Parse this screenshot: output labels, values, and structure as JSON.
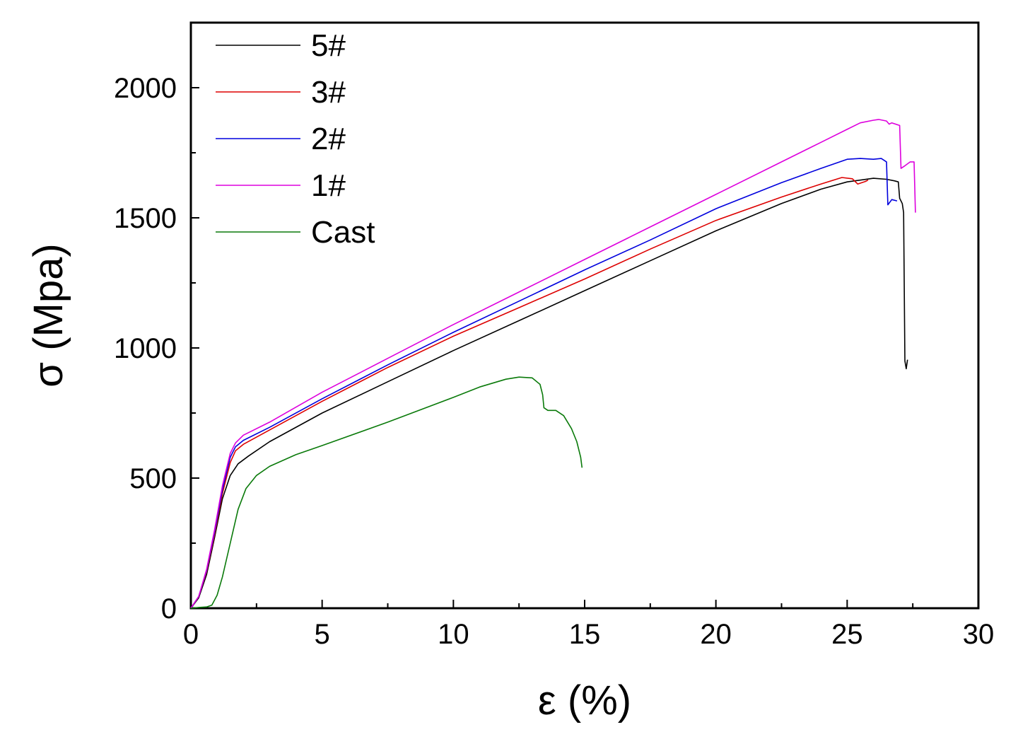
{
  "chart_data": {
    "type": "line",
    "title": "",
    "xlabel": "ε (%)",
    "ylabel": "σ (Mpa)",
    "xlim": [
      0,
      30
    ],
    "ylim": [
      0,
      2250
    ],
    "x_ticks": [
      0,
      5,
      10,
      15,
      20,
      25,
      30
    ],
    "y_ticks": [
      0,
      500,
      1000,
      1500,
      2000
    ],
    "x_minor_step": 2.5,
    "y_minor_step": 250,
    "grid": false,
    "legend_position": "top-left",
    "series": [
      {
        "name": "5#",
        "color": "#000000",
        "points": [
          [
            0,
            0
          ],
          [
            0.3,
            40
          ],
          [
            0.6,
            130
          ],
          [
            0.9,
            270
          ],
          [
            1.2,
            420
          ],
          [
            1.5,
            510
          ],
          [
            1.8,
            555
          ],
          [
            2.2,
            585
          ],
          [
            3,
            640
          ],
          [
            5,
            750
          ],
          [
            7.5,
            870
          ],
          [
            10,
            990
          ],
          [
            12.5,
            1105
          ],
          [
            15,
            1220
          ],
          [
            17.5,
            1335
          ],
          [
            20,
            1450
          ],
          [
            22.5,
            1555
          ],
          [
            24,
            1610
          ],
          [
            25,
            1638
          ],
          [
            26,
            1652
          ],
          [
            26.5,
            1648
          ],
          [
            26.8,
            1642
          ],
          [
            26.95,
            1638
          ],
          [
            27.0,
            1575
          ],
          [
            27.1,
            1555
          ],
          [
            27.15,
            1520
          ],
          [
            27.2,
            950
          ],
          [
            27.25,
            920
          ],
          [
            27.3,
            955
          ]
        ]
      },
      {
        "name": "3#",
        "color": "#dd0000",
        "points": [
          [
            0,
            0
          ],
          [
            0.3,
            45
          ],
          [
            0.6,
            140
          ],
          [
            0.9,
            280
          ],
          [
            1.2,
            440
          ],
          [
            1.5,
            560
          ],
          [
            1.7,
            605
          ],
          [
            2,
            630
          ],
          [
            3,
            685
          ],
          [
            5,
            795
          ],
          [
            7.5,
            925
          ],
          [
            10,
            1045
          ],
          [
            12.5,
            1155
          ],
          [
            15,
            1265
          ],
          [
            17.5,
            1380
          ],
          [
            20,
            1490
          ],
          [
            22.5,
            1580
          ],
          [
            24,
            1630
          ],
          [
            24.8,
            1655
          ],
          [
            25.2,
            1650
          ],
          [
            25.4,
            1630
          ],
          [
            25.7,
            1640
          ],
          [
            25.8,
            1645
          ]
        ]
      },
      {
        "name": "2#",
        "color": "#0000dd",
        "points": [
          [
            0,
            0
          ],
          [
            0.3,
            45
          ],
          [
            0.6,
            145
          ],
          [
            0.9,
            290
          ],
          [
            1.2,
            455
          ],
          [
            1.5,
            580
          ],
          [
            1.7,
            620
          ],
          [
            2,
            645
          ],
          [
            3,
            695
          ],
          [
            5,
            805
          ],
          [
            7.5,
            935
          ],
          [
            10,
            1060
          ],
          [
            12.5,
            1180
          ],
          [
            15,
            1300
          ],
          [
            17.5,
            1415
          ],
          [
            20,
            1535
          ],
          [
            22.5,
            1635
          ],
          [
            24,
            1690
          ],
          [
            25,
            1725
          ],
          [
            25.5,
            1728
          ],
          [
            26,
            1725
          ],
          [
            26.3,
            1728
          ],
          [
            26.5,
            1715
          ],
          [
            26.55,
            1550
          ],
          [
            26.7,
            1570
          ],
          [
            26.9,
            1565
          ]
        ]
      },
      {
        "name": "1#",
        "color": "#dd00dd",
        "points": [
          [
            0,
            0
          ],
          [
            0.3,
            45
          ],
          [
            0.6,
            150
          ],
          [
            0.9,
            300
          ],
          [
            1.2,
            470
          ],
          [
            1.5,
            595
          ],
          [
            1.7,
            635
          ],
          [
            2,
            665
          ],
          [
            3,
            715
          ],
          [
            5,
            830
          ],
          [
            7.5,
            960
          ],
          [
            10,
            1090
          ],
          [
            12.5,
            1215
          ],
          [
            15,
            1340
          ],
          [
            17.5,
            1465
          ],
          [
            20,
            1590
          ],
          [
            22.5,
            1715
          ],
          [
            24,
            1790
          ],
          [
            25,
            1840
          ],
          [
            25.5,
            1865
          ],
          [
            26,
            1875
          ],
          [
            26.2,
            1878
          ],
          [
            26.5,
            1872
          ],
          [
            26.6,
            1860
          ],
          [
            26.7,
            1865
          ],
          [
            27.0,
            1855
          ],
          [
            27.05,
            1690
          ],
          [
            27.2,
            1700
          ],
          [
            27.4,
            1715
          ],
          [
            27.55,
            1715
          ],
          [
            27.6,
            1520
          ]
        ]
      },
      {
        "name": "Cast",
        "color": "#0a7a0a",
        "points": [
          [
            0,
            0
          ],
          [
            0.3,
            3
          ],
          [
            0.6,
            5
          ],
          [
            0.8,
            12
          ],
          [
            1.0,
            50
          ],
          [
            1.2,
            120
          ],
          [
            1.5,
            250
          ],
          [
            1.8,
            380
          ],
          [
            2.1,
            460
          ],
          [
            2.5,
            510
          ],
          [
            3,
            545
          ],
          [
            4,
            590
          ],
          [
            5,
            625
          ],
          [
            7.5,
            715
          ],
          [
            10,
            810
          ],
          [
            11,
            850
          ],
          [
            12,
            880
          ],
          [
            12.5,
            888
          ],
          [
            13,
            885
          ],
          [
            13.3,
            860
          ],
          [
            13.4,
            820
          ],
          [
            13.45,
            770
          ],
          [
            13.6,
            760
          ],
          [
            13.9,
            760
          ],
          [
            14.2,
            740
          ],
          [
            14.5,
            690
          ],
          [
            14.7,
            640
          ],
          [
            14.85,
            580
          ],
          [
            14.9,
            540
          ]
        ]
      }
    ]
  }
}
